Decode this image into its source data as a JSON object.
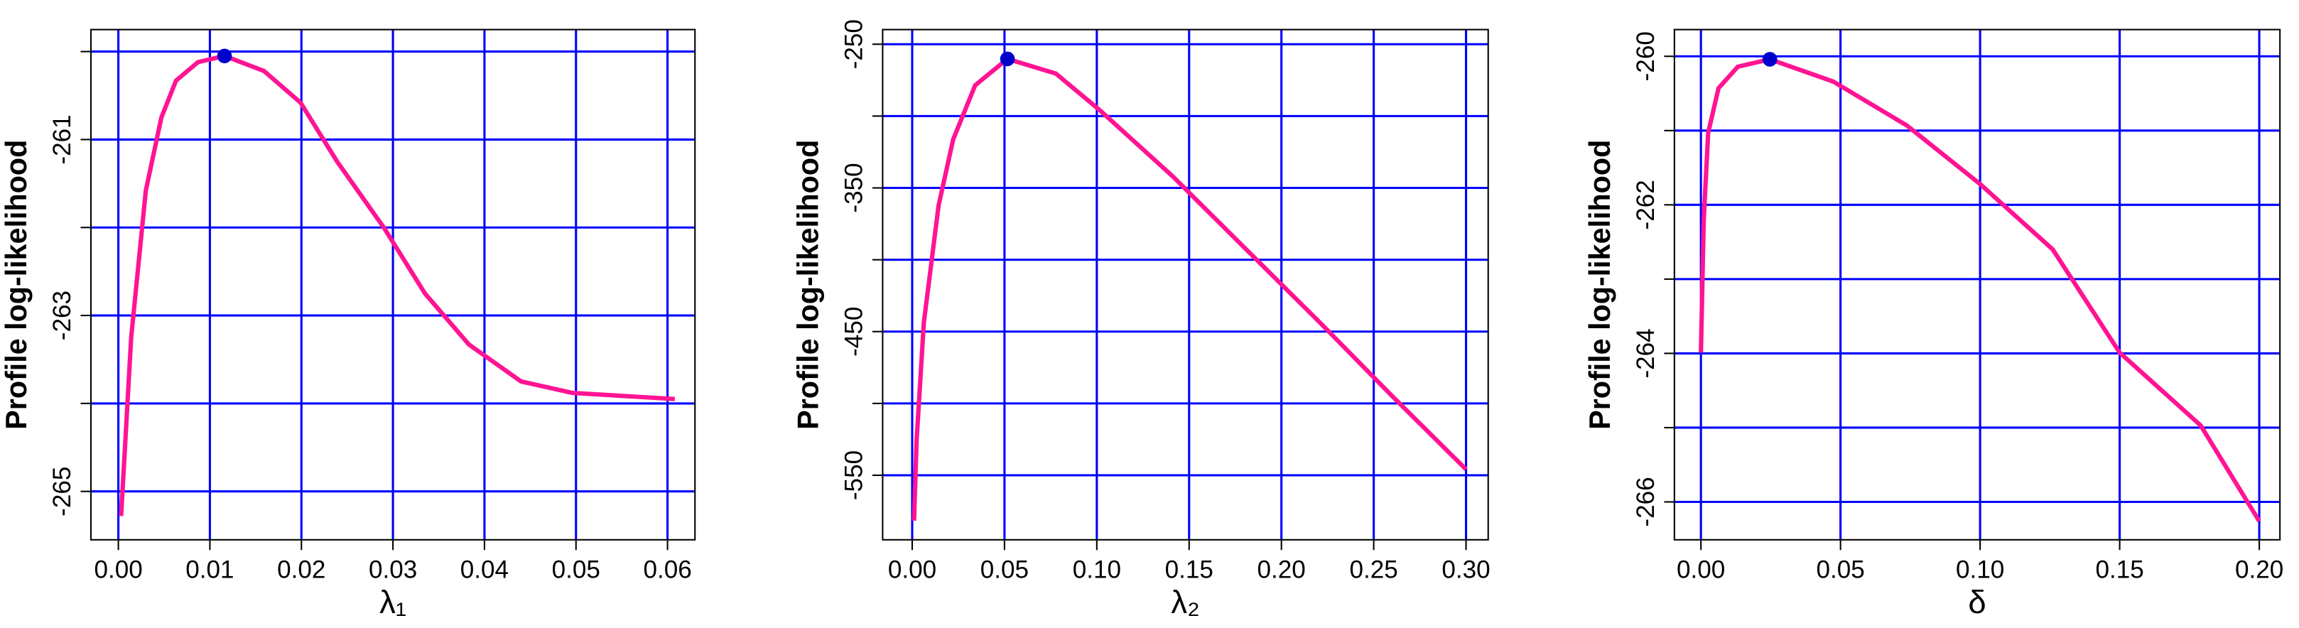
{
  "chart_data": [
    {
      "type": "line",
      "x_label": "λ₁",
      "y_label": "Profile log-likelihood",
      "x": [
        0.0003,
        0.0014,
        0.003,
        0.0047,
        0.0063,
        0.0087,
        0.0116,
        0.0159,
        0.0199,
        0.0239,
        0.029,
        0.0335,
        0.0383,
        0.044,
        0.0496,
        0.056,
        0.0608
      ],
      "series": [
        {
          "color": "#ff1493",
          "values": [
            -265.28,
            -263.25,
            -261.58,
            -260.75,
            -260.33,
            -260.12,
            -260.05,
            -260.22,
            -260.58,
            -261.25,
            -262.0,
            -262.75,
            -263.33,
            -263.75,
            -263.88,
            -263.92,
            -263.95
          ]
        }
      ],
      "marker": {
        "x": 0.0116,
        "y": -260.05,
        "color": "#0000cd"
      },
      "xlim": [
        -0.003,
        0.063
      ],
      "ylim": [
        -265.55,
        -259.75
      ],
      "xticks": [
        {
          "value": 0,
          "label": "0.00"
        },
        {
          "value": 0.01,
          "label": "0.01"
        },
        {
          "value": 0.02,
          "label": "0.02"
        },
        {
          "value": 0.03,
          "label": "0.03"
        },
        {
          "value": 0.04,
          "label": "0.04"
        },
        {
          "value": 0.05,
          "label": "0.05"
        },
        {
          "value": 0.06,
          "label": "0.06"
        }
      ],
      "yticks": [
        -261,
        -263,
        -265
      ],
      "ygrid": [
        -260,
        -261,
        -262,
        -263,
        -264,
        -265
      ],
      "grid_color": "#0000ff"
    },
    {
      "type": "line",
      "x_label": "λ₂",
      "y_label": "Profile log-likelihood",
      "x": [
        0.001,
        0.0024,
        0.0063,
        0.0143,
        0.0222,
        0.0341,
        0.0516,
        0.0778,
        0.1016,
        0.141,
        0.181,
        0.221,
        0.26,
        0.3
      ],
      "series": [
        {
          "color": "#ff1493",
          "values": [
            -581.6,
            -525.5,
            -443.9,
            -362.2,
            -316.3,
            -278.6,
            -260.2,
            -270.4,
            -295.9,
            -341.8,
            -392.9,
            -443.9,
            -494.9,
            -545.9
          ]
        }
      ],
      "marker": {
        "x": 0.0516,
        "y": -260.2,
        "color": "#0000cd"
      },
      "xlim": [
        -0.016,
        0.312
      ],
      "ylim": [
        -594.9,
        -239.8
      ],
      "xticks": [
        {
          "value": 0,
          "label": "0.00"
        },
        {
          "value": 0.05,
          "label": "0.05"
        },
        {
          "value": 0.1,
          "label": "0.10"
        },
        {
          "value": 0.15,
          "label": "0.15"
        },
        {
          "value": 0.2,
          "label": "0.20"
        },
        {
          "value": 0.25,
          "label": "0.25"
        },
        {
          "value": 0.3,
          "label": "0.30"
        }
      ],
      "yticks": [
        -250,
        -350,
        -450,
        -550
      ],
      "ygrid": [
        -250,
        -300,
        -350,
        -400,
        -450,
        -500,
        -550
      ],
      "grid_color": "#0000ff"
    },
    {
      "type": "line",
      "x_label": "δ",
      "y_label": "Profile log-likelihood",
      "x": [
        0,
        0.001,
        0.0026,
        0.0063,
        0.0132,
        0.0247,
        0.0474,
        0.0737,
        0.1,
        0.126,
        0.15,
        0.179,
        0.2
      ],
      "series": [
        {
          "color": "#ff1493",
          "values": [
            -263.99,
            -262.21,
            -261.03,
            -260.43,
            -260.14,
            -260.04,
            -260.34,
            -260.93,
            -261.72,
            -262.6,
            -263.99,
            -264.97,
            -266.26
          ]
        }
      ],
      "marker": {
        "x": 0.0247,
        "y": -260.04,
        "color": "#0000cd"
      },
      "xlim": [
        -0.0095,
        0.2074
      ],
      "ylim": [
        -266.51,
        -259.64
      ],
      "xticks": [
        {
          "value": 0,
          "label": "0.00"
        },
        {
          "value": 0.05,
          "label": "0.05"
        },
        {
          "value": 0.1,
          "label": "0.10"
        },
        {
          "value": 0.15,
          "label": "0.15"
        },
        {
          "value": 0.2,
          "label": "0.20"
        }
      ],
      "yticks": [
        -260,
        -262,
        -264,
        -266
      ],
      "ygrid": [
        -260,
        -261,
        -262,
        -263,
        -264,
        -265,
        -266
      ],
      "grid_color": "#0000ff"
    }
  ]
}
